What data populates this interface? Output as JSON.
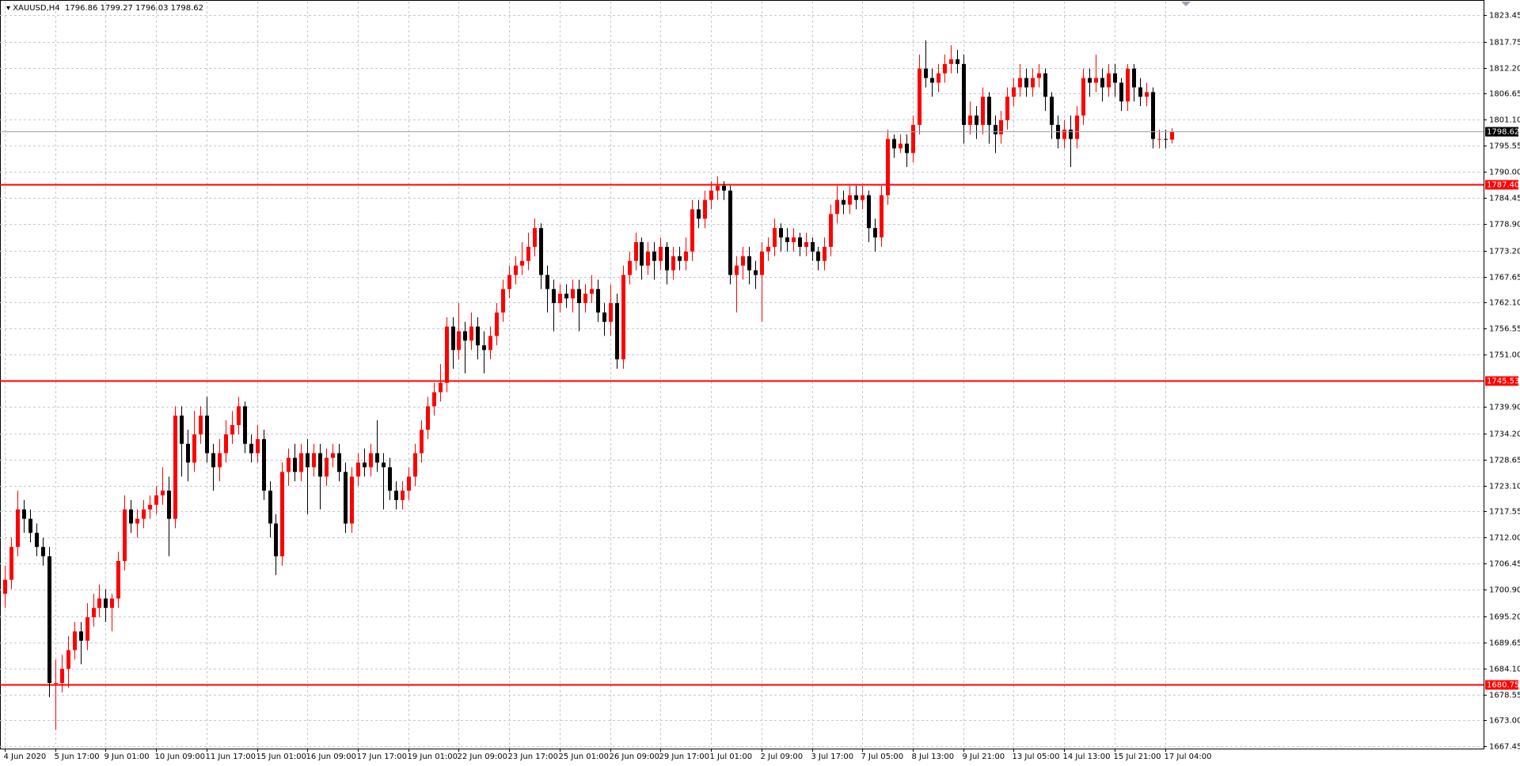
{
  "chart_data": {
    "type": "candlestick",
    "title": "XAUUSD,H4",
    "up_color": "#ff0000",
    "down_color": "#000000",
    "grid": true,
    "ylim": [
      1667.0,
      1826.3
    ],
    "yticks": [
      1823.45,
      1817.75,
      {
        "value": 1812.2,
        "label": "1812.20"
      },
      1806.65,
      {
        "value": 1801.1,
        "label": "1801.10"
      },
      1795.55,
      {
        "value": 1790.0,
        "label": "1790.00"
      },
      1784.45,
      {
        "value": 1778.9,
        "label": "1778.90"
      },
      {
        "value": 1773.2,
        "label": "1773.20"
      },
      1767.65,
      {
        "value": 1762.1,
        "label": "1762.10"
      },
      1756.55,
      {
        "value": 1751.0,
        "label": "1751.00"
      },
      {
        "value": 1739.9,
        "label": "1739.90"
      },
      {
        "value": 1734.2,
        "label": "1734.20"
      },
      1728.65,
      {
        "value": 1723.1,
        "label": "1723.10"
      },
      1717.55,
      {
        "value": 1712.0,
        "label": "1712.00"
      },
      1706.45,
      {
        "value": 1700.9,
        "label": "1700.90"
      },
      {
        "value": 1695.2,
        "label": "1695.20"
      },
      1689.65,
      {
        "value": 1684.1,
        "label": "1684.10"
      },
      1678.55,
      {
        "value": 1673.0,
        "label": "1673.00"
      },
      1667.45
    ],
    "levels": [
      {
        "value": 1787.4,
        "label": "1787.40",
        "color": "#ff0000"
      },
      {
        "value": 1745.53,
        "label": "1745.53",
        "color": "#ff0000"
      },
      {
        "value": 1680.75,
        "label": "1680.75",
        "color": "#ff0000"
      }
    ],
    "categories": [
      "4 Jun 2020",
      null,
      null,
      null,
      null,
      null,
      null,
      null,
      "5 Jun 17:00",
      null,
      null,
      null,
      null,
      null,
      null,
      null,
      "9 Jun 01:00",
      null,
      null,
      null,
      null,
      null,
      null,
      null,
      "10 Jun 09:00",
      null,
      null,
      null,
      null,
      null,
      null,
      null,
      "11 Jun 17:00",
      null,
      null,
      null,
      null,
      null,
      null,
      null,
      "15 Jun 01:00",
      null,
      null,
      null,
      null,
      null,
      null,
      null,
      "16 Jun 09:00",
      null,
      null,
      null,
      null,
      null,
      null,
      null,
      "17 Jun 17:00",
      null,
      null,
      null,
      null,
      null,
      null,
      null,
      "19 Jun 01:00",
      null,
      null,
      null,
      null,
      null,
      null,
      null,
      "22 Jun 09:00",
      null,
      null,
      null,
      null,
      null,
      null,
      null,
      "23 Jun 17:00",
      null,
      null,
      null,
      null,
      null,
      null,
      null,
      "25 Jun 01:00",
      null,
      null,
      null,
      null,
      null,
      null,
      null,
      "26 Jun 09:00",
      null,
      null,
      null,
      null,
      null,
      null,
      null,
      "29 Jun 17:00",
      null,
      null,
      null,
      null,
      null,
      null,
      null,
      "1 Jul 01:00",
      null,
      null,
      null,
      null,
      null,
      null,
      null,
      "2 Jul 09:00",
      null,
      null,
      null,
      null,
      null,
      null,
      null,
      "3 Jul 17:00",
      null,
      null,
      null,
      null,
      null,
      null,
      null,
      "7 Jul 05:00",
      null,
      null,
      null,
      null,
      null,
      null,
      null,
      "8 Jul 13:00",
      null,
      null,
      null,
      null,
      null,
      null,
      null,
      "9 Jul 21:00",
      null,
      null,
      null,
      null,
      null,
      null,
      null,
      "13 Jul 05:00",
      null,
      null,
      null,
      null,
      null,
      null,
      null,
      "14 Jul 13:00",
      null,
      null,
      null,
      null,
      null,
      null,
      null,
      "15 Jul 21:00",
      null,
      null,
      null,
      null,
      null,
      null,
      null,
      "17 Jul 04:00",
      null
    ],
    "open": [
      1700,
      1703,
      1710,
      1718,
      1716,
      1713,
      1710,
      1708,
      1681,
      1681,
      1684,
      1688,
      1692,
      1690,
      1695,
      1697,
      1699,
      1697,
      1699,
      1707,
      1718,
      1715,
      1716,
      1718,
      1719,
      1721,
      1722,
      1716,
      1738,
      1732,
      1728,
      1734,
      1738,
      1730,
      1727,
      1730,
      1734,
      1736,
      1740,
      1732,
      1730,
      1733,
      1722,
      1715,
      1708,
      1726,
      1729,
      1726,
      1730,
      1727,
      1730,
      1725,
      1729,
      1730,
      1726,
      1715,
      1725,
      1728,
      1727,
      1730,
      1728,
      1727,
      1722,
      1720,
      1722,
      1725,
      1730,
      1735,
      1740,
      1743,
      1745,
      1757,
      1752,
      1756,
      1754,
      1757,
      1753,
      1752,
      1755,
      1760,
      1765,
      1768,
      1770,
      1771,
      1774,
      1778,
      1768,
      1765,
      1762,
      1764,
      1763,
      1765,
      1762,
      1764,
      1765,
      1760,
      1758,
      1762,
      1750,
      1768,
      1771,
      1775,
      1770,
      1773,
      1771,
      1774,
      1769,
      1772,
      1771,
      1773,
      1782,
      1780,
      1784,
      1786,
      1787,
      1786,
      1768,
      1770,
      1772,
      1769,
      1768,
      1773,
      1774,
      1778,
      1776,
      1775,
      1776,
      1774,
      1775,
      1773,
      1771,
      1774,
      1781,
      1784,
      1783,
      1785,
      1784,
      1785,
      1778,
      1776,
      1785,
      1797,
      1795,
      1796,
      1794,
      1800,
      1812,
      1810,
      1809,
      1811,
      1813,
      1814,
      1813,
      1800,
      1802,
      1800,
      1806,
      1800,
      1798,
      1801,
      1806,
      1808,
      1810,
      1808,
      1810,
      1811,
      1806,
      1800,
      1797,
      1799,
      1797,
      1802,
      1810,
      1809,
      1810,
      1808,
      1811,
      1809,
      1805,
      1812,
      1808,
      1806,
      1807,
      1797,
      1797,
      1796.86
    ],
    "high": [
      1706,
      1712,
      1722,
      1720,
      1718,
      1715,
      1712,
      1710,
      1686,
      1687,
      1691,
      1694,
      1694,
      1698,
      1700,
      1702,
      1701,
      1700,
      1709,
      1721,
      1720,
      1718,
      1720,
      1721,
      1723,
      1727,
      1725,
      1740,
      1740,
      1735,
      1739,
      1740,
      1742,
      1732,
      1733,
      1737,
      1739,
      1742,
      1741,
      1734,
      1736,
      1735,
      1724,
      1717,
      1728,
      1731,
      1732,
      1732,
      1733,
      1732,
      1732,
      1731,
      1732,
      1732,
      1728,
      1727,
      1730,
      1731,
      1732,
      1737,
      1730,
      1729,
      1724,
      1724,
      1727,
      1732,
      1737,
      1742,
      1745,
      1749,
      1759,
      1759,
      1762,
      1758,
      1760,
      1759,
      1756,
      1757,
      1762,
      1767,
      1770,
      1772,
      1775,
      1777,
      1780,
      1779,
      1770,
      1767,
      1766,
      1766,
      1767,
      1767,
      1766,
      1768,
      1767,
      1762,
      1766,
      1764,
      1770,
      1773,
      1777,
      1776,
      1775,
      1775,
      1776,
      1775,
      1774,
      1774,
      1776,
      1784,
      1784,
      1786,
      1788,
      1789,
      1788,
      1787,
      1772,
      1774,
      1774,
      1771,
      1775,
      1776,
      1780,
      1779,
      1778,
      1778,
      1777,
      1777,
      1776,
      1774,
      1776,
      1783,
      1787,
      1786,
      1787,
      1787,
      1787,
      1786,
      1780,
      1787,
      1799,
      1798,
      1798,
      1798,
      1802,
      1815,
      1818,
      1812,
      1813,
      1815,
      1817,
      1816,
      1815,
      1805,
      1804,
      1808,
      1807,
      1802,
      1803,
      1808,
      1810,
      1813,
      1812,
      1812,
      1813,
      1812,
      1807,
      1802,
      1801,
      1802,
      1804,
      1812,
      1812,
      1815,
      1812,
      1813,
      1813,
      1810,
      1813,
      1813,
      1810,
      1809,
      1808,
      1799,
      1799,
      1799.27
    ],
    "low": [
      1697,
      1701,
      1708,
      1713,
      1711,
      1708,
      1706,
      1678,
      1671,
      1679,
      1680,
      1686,
      1685,
      1688,
      1693,
      1695,
      1694,
      1692,
      1697,
      1705,
      1713,
      1712,
      1714,
      1716,
      1717,
      1719,
      1708,
      1714,
      1725,
      1724,
      1726,
      1732,
      1728,
      1722,
      1724,
      1728,
      1732,
      1734,
      1730,
      1728,
      1728,
      1720,
      1712,
      1704,
      1706,
      1723,
      1724,
      1724,
      1717,
      1725,
      1718,
      1723,
      1727,
      1724,
      1713,
      1713,
      1723,
      1725,
      1725,
      1726,
      1718,
      1720,
      1718,
      1718,
      1720,
      1723,
      1728,
      1733,
      1738,
      1741,
      1743,
      1748,
      1750,
      1747,
      1752,
      1750,
      1747,
      1750,
      1753,
      1758,
      1763,
      1766,
      1768,
      1769,
      1772,
      1765,
      1760,
      1756,
      1760,
      1761,
      1760,
      1756,
      1760,
      1762,
      1758,
      1755,
      1755,
      1748,
      1748,
      1766,
      1769,
      1767,
      1768,
      1767,
      1769,
      1766,
      1767,
      1769,
      1769,
      1771,
      1778,
      1778,
      1782,
      1784,
      1784,
      1766,
      1760,
      1767,
      1766,
      1765,
      1758,
      1771,
      1772,
      1773,
      1773,
      1773,
      1772,
      1772,
      1771,
      1769,
      1769,
      1772,
      1779,
      1781,
      1781,
      1782,
      1782,
      1775,
      1773,
      1774,
      1783,
      1793,
      1794,
      1791,
      1792,
      1798,
      1808,
      1806,
      1807,
      1809,
      1811,
      1811,
      1796,
      1798,
      1797,
      1798,
      1796,
      1794,
      1796,
      1799,
      1804,
      1806,
      1806,
      1806,
      1808,
      1803,
      1797,
      1795,
      1795,
      1791,
      1795,
      1800,
      1806,
      1807,
      1805,
      1806,
      1806,
      1803,
      1803,
      1805,
      1804,
      1804,
      1795,
      1795,
      1795,
      1796.03
    ],
    "close": [
      1703,
      1710,
      1718,
      1716,
      1713,
      1710,
      1708,
      1681,
      1681,
      1684,
      1688,
      1692,
      1690,
      1695,
      1697,
      1699,
      1697,
      1699,
      1707,
      1718,
      1715,
      1716,
      1718,
      1719,
      1721,
      1722,
      1716,
      1738,
      1732,
      1728,
      1734,
      1738,
      1730,
      1727,
      1730,
      1734,
      1736,
      1740,
      1732,
      1730,
      1733,
      1722,
      1715,
      1708,
      1726,
      1729,
      1726,
      1730,
      1727,
      1730,
      1725,
      1729,
      1730,
      1726,
      1715,
      1725,
      1728,
      1727,
      1730,
      1728,
      1727,
      1722,
      1720,
      1722,
      1725,
      1730,
      1735,
      1740,
      1743,
      1745,
      1757,
      1752,
      1756,
      1754,
      1757,
      1753,
      1752,
      1755,
      1760,
      1765,
      1768,
      1770,
      1771,
      1774,
      1778,
      1768,
      1765,
      1762,
      1764,
      1763,
      1765,
      1762,
      1764,
      1765,
      1760,
      1758,
      1762,
      1750,
      1768,
      1771,
      1775,
      1770,
      1773,
      1771,
      1774,
      1769,
      1772,
      1771,
      1773,
      1782,
      1780,
      1784,
      1786,
      1787,
      1786,
      1768,
      1770,
      1772,
      1769,
      1768,
      1773,
      1774,
      1778,
      1776,
      1775,
      1776,
      1774,
      1775,
      1773,
      1771,
      1774,
      1781,
      1784,
      1783,
      1785,
      1784,
      1785,
      1778,
      1776,
      1785,
      1797,
      1795,
      1796,
      1794,
      1800,
      1812,
      1810,
      1809,
      1811,
      1813,
      1814,
      1813,
      1800,
      1802,
      1800,
      1806,
      1800,
      1798,
      1801,
      1806,
      1808,
      1810,
      1808,
      1810,
      1811,
      1806,
      1800,
      1797,
      1799,
      1797,
      1802,
      1810,
      1809,
      1810,
      1808,
      1811,
      1809,
      1805,
      1812,
      1808,
      1806,
      1807,
      1797,
      1797,
      1796.86,
      1798.62
    ]
  }
}
